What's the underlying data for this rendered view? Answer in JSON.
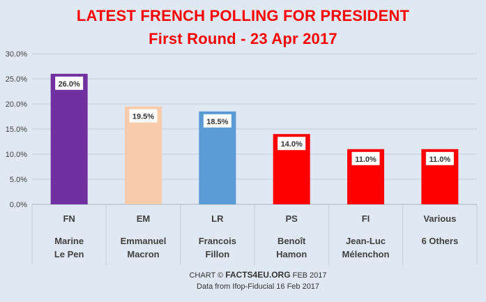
{
  "colors": {
    "background": "#dfe8f3",
    "title": "#ff0000",
    "grid": "#c5d0dc"
  },
  "chart_data": {
    "type": "bar",
    "title": "LATEST FRENCH POLLING FOR PRESIDENT",
    "subtitle": "First Round - 23 Apr 2017",
    "ylim": [
      0,
      30
    ],
    "yticks": [
      "0.0%",
      "5.0%",
      "10.0%",
      "15.0%",
      "20.0%",
      "25.0%",
      "30.0%"
    ],
    "grid": true,
    "categories": [
      {
        "party": "FN",
        "line1": "Marine",
        "line2": "Le Pen",
        "value": 26.0,
        "label": "26.0%",
        "color": "#7030a0"
      },
      {
        "party": "EM",
        "line1": "Emmanuel",
        "line2": "Macron",
        "value": 19.5,
        "label": "19.5%",
        "color": "#f8cbad"
      },
      {
        "party": "LR",
        "line1": "Francois",
        "line2": "Fillon",
        "value": 18.5,
        "label": "18.5%",
        "color": "#5b9bd5"
      },
      {
        "party": "PS",
        "line1": "Benoît",
        "line2": "Hamon",
        "value": 14.0,
        "label": "14.0%",
        "color": "#ff0000"
      },
      {
        "party": "FI",
        "line1": "Jean-Luc",
        "line2": "Mélenchon",
        "value": 11.0,
        "label": "11.0%",
        "color": "#ff0000"
      },
      {
        "party": "Various",
        "line1": "6 Others",
        "line2": "",
        "value": 11.0,
        "label": "11.0%",
        "color": "#ff0000"
      }
    ]
  },
  "footer": {
    "line1_prefix": "CHART © ",
    "line1_brand": "FACTS4EU.ORG",
    "line1_suffix": " FEB 2017",
    "line2": "Data from Ifop-Fiducial 16 Feb 2017"
  }
}
